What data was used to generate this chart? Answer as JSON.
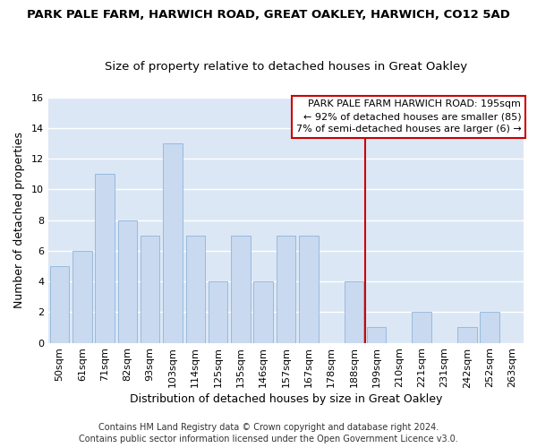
{
  "title": "PARK PALE FARM, HARWICH ROAD, GREAT OAKLEY, HARWICH, CO12 5AD",
  "subtitle": "Size of property relative to detached houses in Great Oakley",
  "xlabel": "Distribution of detached houses by size in Great Oakley",
  "ylabel": "Number of detached properties",
  "categories": [
    "50sqm",
    "61sqm",
    "71sqm",
    "82sqm",
    "93sqm",
    "103sqm",
    "114sqm",
    "125sqm",
    "135sqm",
    "146sqm",
    "157sqm",
    "167sqm",
    "178sqm",
    "188sqm",
    "199sqm",
    "210sqm",
    "221sqm",
    "231sqm",
    "242sqm",
    "252sqm",
    "263sqm"
  ],
  "values": [
    5,
    6,
    11,
    8,
    7,
    13,
    7,
    4,
    7,
    4,
    7,
    7,
    0,
    4,
    1,
    0,
    2,
    0,
    1,
    2,
    0
  ],
  "bar_color": "#c9d9f0",
  "bar_edge_color": "#8fb4d9",
  "plot_bg_color": "#dce7f5",
  "figure_bg_color": "#ffffff",
  "grid_color": "#ffffff",
  "vline_x": 13.5,
  "vline_color": "#cc0000",
  "annotation_title": "PARK PALE FARM HARWICH ROAD: 195sqm",
  "annotation_line1": "← 92% of detached houses are smaller (85)",
  "annotation_line2": "7% of semi-detached houses are larger (6) →",
  "annotation_box_color": "#ffffff",
  "annotation_border_color": "#cc0000",
  "ylim": [
    0,
    16
  ],
  "yticks": [
    0,
    2,
    4,
    6,
    8,
    10,
    12,
    14,
    16
  ],
  "footer": "Contains HM Land Registry data © Crown copyright and database right 2024.\nContains public sector information licensed under the Open Government Licence v3.0.",
  "title_fontsize": 9.5,
  "subtitle_fontsize": 9.5,
  "xlabel_fontsize": 9,
  "ylabel_fontsize": 9,
  "tick_fontsize": 8,
  "annotation_fontsize": 8,
  "footer_fontsize": 7
}
